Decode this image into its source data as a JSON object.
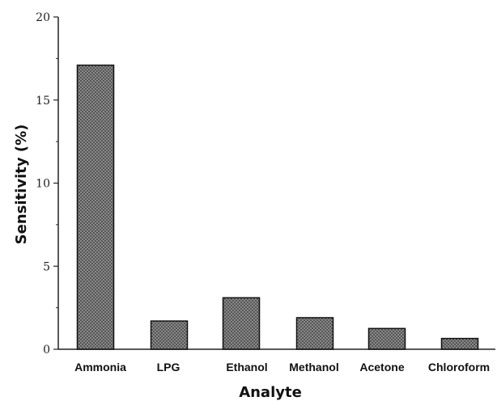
{
  "chart_data": {
    "type": "bar",
    "categories": [
      "Ammonia",
      "LPG",
      "Ethanol",
      "Methanol",
      "Acetone",
      "Chloroform"
    ],
    "values": [
      17.1,
      1.7,
      3.1,
      1.9,
      1.25,
      0.65
    ],
    "title": "",
    "xlabel": "Analyte",
    "ylabel": "Sensitivity (%)",
    "ylim": [
      0,
      20
    ],
    "yticks": [
      0,
      5,
      10,
      15,
      20
    ],
    "grid": false,
    "bar_color": "#8c8c8c"
  }
}
